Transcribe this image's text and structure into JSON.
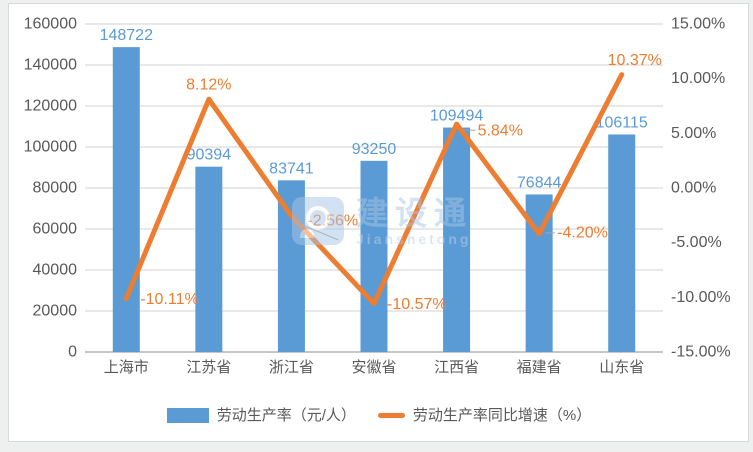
{
  "colors": {
    "bar": "#5B9BD5",
    "line": "#ED7D31",
    "axis_text": "#595959",
    "gridline": "#D9D9D9",
    "baseline": "#C6C6C6",
    "leader": "#A6A6A6",
    "watermark": "#A9C6E6"
  },
  "watermark": {
    "brand": "建设通",
    "brand_latin": "Jianshetong"
  },
  "legend": [
    {
      "label": "劳动生产率（元/人）",
      "type": "bar"
    },
    {
      "label": "劳动生产率同比增速（%）",
      "type": "line"
    }
  ],
  "chart_data": {
    "type": "combo",
    "categories": [
      "上海市",
      "江苏省",
      "浙江省",
      "安徽省",
      "江西省",
      "福建省",
      "山东省"
    ],
    "series": [
      {
        "name": "劳动生产率（元/人）",
        "type": "bar",
        "axis": "left",
        "values": [
          148722,
          90394,
          83741,
          93250,
          109494,
          76844,
          106115
        ],
        "labels": [
          "148722",
          "90394",
          "83741",
          "93250",
          "109494",
          "76844",
          "106115"
        ]
      },
      {
        "name": "劳动生产率同比增速（%）",
        "type": "line",
        "axis": "right",
        "values": [
          -10.11,
          8.12,
          -2.56,
          -10.57,
          5.84,
          -4.2,
          10.37
        ],
        "labels": [
          "-10.11%",
          "8.12%",
          "-2.56%",
          "-10.57%",
          "5.84%",
          "-4.20%",
          "10.37%"
        ]
      }
    ],
    "left_axis": {
      "min": 0,
      "max": 160000,
      "step": 20000,
      "tick_labels": [
        "0",
        "20000",
        "40000",
        "60000",
        "80000",
        "100000",
        "120000",
        "140000",
        "160000"
      ]
    },
    "right_axis": {
      "min": -15,
      "max": 15,
      "step": 5,
      "tick_labels": [
        "-15.00%",
        "-10.00%",
        "-5.00%",
        "0.00%",
        "5.00%",
        "10.00%",
        "15.00%"
      ]
    },
    "grid": true,
    "legend_position": "bottom"
  }
}
